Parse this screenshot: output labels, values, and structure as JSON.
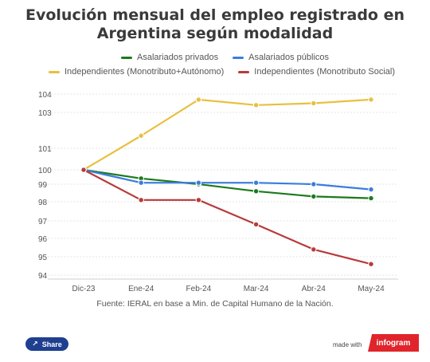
{
  "chart_data": {
    "type": "line",
    "title": "Evolución mensual del empleo registrado en Argentina según modalidad",
    "categories": [
      "Dic-23",
      "Ene-24",
      "Feb-24",
      "Mar-24",
      "Abr-24",
      "May-24"
    ],
    "series": [
      {
        "name": "Asalariados privados",
        "color": "#1b7a1b",
        "values": [
          100,
          99.4,
          99.0,
          98.6,
          98.3,
          98.2
        ]
      },
      {
        "name": "Asalariados públicos",
        "color": "#3b7ddd",
        "values": [
          100,
          99.1,
          99.1,
          99.1,
          99.0,
          98.7
        ]
      },
      {
        "name": "Independientes (Monotributo+Autónomo)",
        "color": "#e8c040",
        "values": [
          100,
          101.7,
          103.7,
          103.4,
          103.5,
          103.7
        ]
      },
      {
        "name": "Independientes (Monotributo Social)",
        "color": "#b83a3a",
        "values": [
          100,
          98.1,
          98.1,
          96.8,
          95.4,
          94.6
        ]
      }
    ],
    "y_ticks": [
      94,
      95,
      96,
      97,
      98,
      99,
      100,
      101,
      103,
      104
    ],
    "grid": true,
    "legend_position": "top"
  },
  "source": "Fuente: IERAL en base a Min. de Capital Humano de la Nación.",
  "footer": {
    "share_label": "Share",
    "made_with": "made with",
    "brand": "infogram"
  }
}
